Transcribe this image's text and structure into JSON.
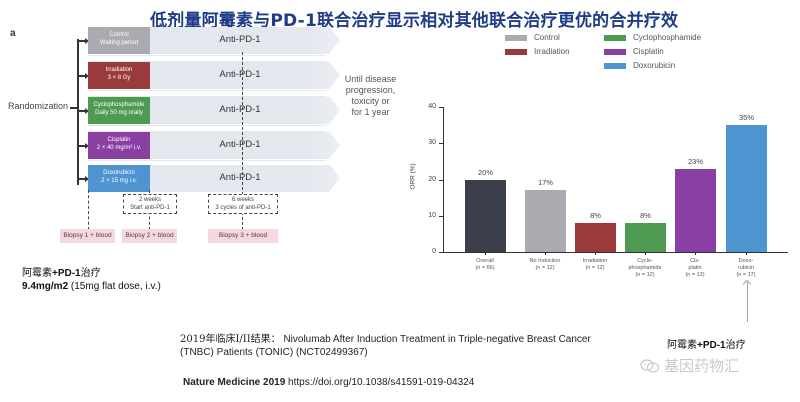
{
  "title": "低剂量阿霉素与PD-1联合治疗显示相对其他联合治疗更优的合并疗效",
  "design": {
    "panel_label": "a",
    "randomization_label": "Randomization",
    "arms": [
      {
        "name": "Control",
        "detail": "Waiting period",
        "color": "#a9abb0",
        "treatment": "Anti-PD-1"
      },
      {
        "name": "Irradiation",
        "detail": "3 × 8 Gy",
        "color": "#9a3a3a",
        "treatment": "Anti-PD-1"
      },
      {
        "name": "Cyclophosphamide",
        "detail": "Daily 50 mg orally",
        "color": "#4f9a53",
        "treatment": "Anti-PD-1"
      },
      {
        "name": "Cisplatin",
        "detail": "2 × 40 mg/m² i.v.",
        "color": "#8a3fa3",
        "treatment": "Anti-PD-1"
      },
      {
        "name": "Doxorubicin",
        "detail": "2 × 15 mg i.v.",
        "color": "#4d94d1",
        "treatment": "Anti-PD-1"
      }
    ],
    "duration_note": [
      "Until disease",
      "progression,",
      "toxicity or",
      "for 1 year"
    ],
    "timepoints": [
      {
        "line1": "2 weeks",
        "line2": "Start anti-PD-1"
      },
      {
        "line1": "6 weeks",
        "line2": "3 cycles of anti-PD-1"
      }
    ],
    "biopsies": [
      "Biopsy 1 + blood",
      "Biopsy 2 + blood",
      "Biopsy 3 + blood"
    ]
  },
  "dose_note": {
    "line1_cn_a": "阿霉素",
    "line1_bold": "+PD-1",
    "line1_cn_b": "治疗",
    "line2_bold": "9.4mg/m2",
    "line2_rest": " (15mg flat dose, i.v.)"
  },
  "clinical_note": {
    "prefix_cn": "2019年临床I/II结果：",
    "text": " Nivolumab After Induction Treatment in Triple-negative Breast Cancer (TNBC) Patients (TONIC)  (NCT02499367)"
  },
  "citation": {
    "journal": "Nature Medicine 2019",
    "doi": " https://doi.org/10.1038/s41591-019-04324"
  },
  "pointer_label": {
    "cn_a": "阿霉素",
    "bold": "+PD-1",
    "cn_b": "治疗"
  },
  "watermark": "基因药物汇",
  "legend": [
    {
      "label": "Control",
      "color": "#a9abb0"
    },
    {
      "label": "Irradiation",
      "color": "#9a3a3a"
    },
    {
      "label": "Cyclophosphamide",
      "color": "#4f9a53"
    },
    {
      "label": "Cisplatin",
      "color": "#8a3fa3"
    },
    {
      "label": "Doxorubicin",
      "color": "#4d94d1"
    }
  ],
  "chart_data": {
    "type": "bar",
    "title": "",
    "xlabel": "",
    "ylabel": "ORR (%)",
    "ylim": [
      0,
      40
    ],
    "yticks": [
      0,
      10,
      20,
      30,
      40
    ],
    "grid": false,
    "legend_position": "top",
    "categories": [
      "Overall (n = 66)",
      "No Induction (n = 12)",
      "Irradiation (n = 12)",
      "Cyclo-phosphamide (n = 12)",
      "Cis-platin (n = 13)",
      "Doxo-rubicin (n = 17)"
    ],
    "category_lines": [
      [
        "Overall",
        "(n = 66)"
      ],
      [
        "No Induction",
        "(n = 12)"
      ],
      [
        "Irradiation",
        "(n = 12)"
      ],
      [
        "Cyclo-",
        "phosphamide",
        "(n = 12)"
      ],
      [
        "Cis-",
        "platin",
        "(n = 13)"
      ],
      [
        "Doxo-",
        "rubicin",
        "(n = 17)"
      ]
    ],
    "values": [
      20,
      17,
      8,
      8,
      23,
      35
    ],
    "value_labels": [
      "20%",
      "17%",
      "8%",
      "8%",
      "23%",
      "35%"
    ],
    "colors": [
      "#3a3f4b",
      "#a9abb0",
      "#9a3a3a",
      "#4f9a53",
      "#8a3fa3",
      "#4d94d1"
    ]
  }
}
